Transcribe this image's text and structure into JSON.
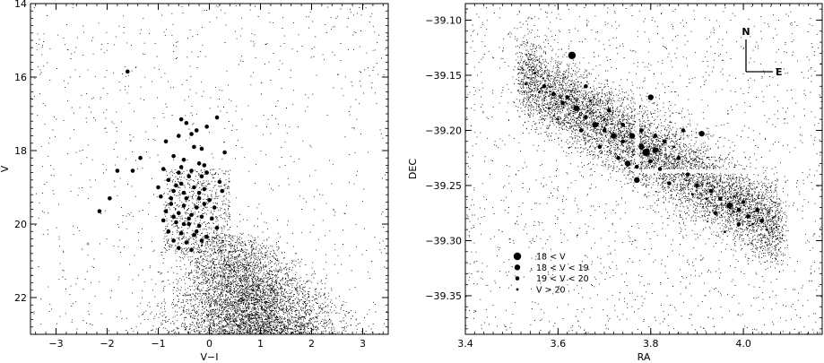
{
  "chart_data": [
    {
      "type": "scatter",
      "xlabel": "V−I",
      "ylabel": "V",
      "xlim": [
        -3.5,
        3.5
      ],
      "ylim": [
        23.0,
        14.0
      ],
      "y_inverted": true,
      "x_ticks": [
        -3,
        -2,
        -1,
        0,
        1,
        2,
        3
      ],
      "x_tick_labels": [
        "−3",
        "−2",
        "−1",
        "0",
        "1",
        "2",
        "3"
      ],
      "y_ticks": [
        14,
        16,
        18,
        20,
        22
      ],
      "y_tick_labels": [
        "14",
        "16",
        "18",
        "20",
        "22"
      ],
      "color": "#000000",
      "series": [
        {
          "role": "field stars (small dots)",
          "distribution": "dense cloud centered near V−I = 0.9, V = 22, extending from V−I ≈ −1 to 3 and V ≈ 20 to 23",
          "points": []
        },
        {
          "role": "bright blue stars (large dots)",
          "points": [
            [
              -1.6,
              15.85
            ],
            [
              -0.55,
              17.15
            ],
            [
              -0.45,
              17.25
            ],
            [
              -0.35,
              17.55
            ],
            [
              0.15,
              17.1
            ],
            [
              -0.05,
              17.35
            ],
            [
              -0.25,
              17.45
            ],
            [
              -0.6,
              17.6
            ],
            [
              -0.85,
              17.75
            ],
            [
              -0.3,
              17.9
            ],
            [
              -0.15,
              17.95
            ],
            [
              0.3,
              18.05
            ],
            [
              -0.7,
              18.15
            ],
            [
              -0.5,
              18.25
            ],
            [
              -0.2,
              18.35
            ],
            [
              -0.1,
              18.4
            ],
            [
              -1.35,
              18.2
            ],
            [
              -1.5,
              18.55
            ],
            [
              -1.8,
              18.55
            ],
            [
              -0.9,
              18.5
            ],
            [
              -0.6,
              18.6
            ],
            [
              -0.4,
              18.7
            ],
            [
              -0.15,
              18.7
            ],
            [
              0.2,
              18.85
            ],
            [
              -0.8,
              18.8
            ],
            [
              -0.55,
              18.9
            ],
            [
              -0.3,
              19.0
            ],
            [
              -0.1,
              19.05
            ],
            [
              -1.0,
              19.0
            ],
            [
              -0.7,
              19.1
            ],
            [
              0.25,
              19.1
            ],
            [
              -0.95,
              19.25
            ],
            [
              -0.45,
              19.3
            ],
            [
              -0.2,
              19.3
            ],
            [
              0.0,
              19.35
            ],
            [
              -1.95,
              19.3
            ],
            [
              -0.75,
              19.45
            ],
            [
              -0.5,
              19.5
            ],
            [
              -0.25,
              19.55
            ],
            [
              0.1,
              19.55
            ],
            [
              -2.15,
              19.65
            ],
            [
              -0.85,
              19.65
            ],
            [
              -0.6,
              19.7
            ],
            [
              -0.35,
              19.75
            ],
            [
              -0.15,
              19.8
            ],
            [
              0.05,
              19.85
            ],
            [
              -0.9,
              19.9
            ],
            [
              -0.65,
              19.95
            ],
            [
              -0.4,
              20.0
            ],
            [
              -0.2,
              20.05
            ],
            [
              0.15,
              20.1
            ],
            [
              -0.8,
              20.2
            ],
            [
              -0.55,
              20.25
            ],
            [
              -0.3,
              20.3
            ],
            [
              -0.05,
              20.35
            ],
            [
              -0.7,
              20.45
            ],
            [
              -0.45,
              20.5
            ],
            [
              -0.15,
              20.45
            ],
            [
              -0.6,
              20.65
            ],
            [
              -0.35,
              20.7
            ],
            [
              -0.55,
              18.45
            ],
            [
              -0.35,
              18.55
            ],
            [
              -0.05,
              18.6
            ],
            [
              -0.65,
              18.95
            ],
            [
              -0.2,
              19.15
            ],
            [
              -0.5,
              19.15
            ],
            [
              -0.75,
              19.3
            ],
            [
              -0.1,
              19.45
            ],
            [
              -0.4,
              19.85
            ],
            [
              -0.7,
              19.8
            ],
            [
              -0.25,
              20.2
            ],
            [
              -0.5,
              20.0
            ]
          ]
        }
      ]
    },
    {
      "type": "scatter",
      "xlabel": "RA",
      "ylabel": "DEC",
      "xlim": [
        3.4,
        4.17
      ],
      "ylim": [
        -39.385,
        -39.085
      ],
      "x_ticks": [
        3.4,
        3.6,
        3.8,
        4.0
      ],
      "x_tick_labels": [
        "3.4",
        "3.6",
        "3.8",
        "4.0"
      ],
      "y_ticks": [
        -39.1,
        -39.15,
        -39.2,
        -39.25,
        -39.3,
        -39.35
      ],
      "y_tick_labels": [
        "−39.10",
        "−39.15",
        "−39.20",
        "−39.25",
        "−39.30",
        "−39.35"
      ],
      "compass": {
        "north": "N",
        "east": "E"
      },
      "legend": [
        {
          "label": "18 < V",
          "size": 4.2
        },
        {
          "label": "18 < V < 19",
          "size": 3.2
        },
        {
          "label": "19 < V < 20",
          "size": 2.3
        },
        {
          "label": "V > 20",
          "size": 1.4
        }
      ],
      "legend_position": "bottom-left",
      "series": [
        {
          "role": "all stars (small dots)",
          "distribution": "elongated band from (RA 3.52, DEC −39.15) to (RA 4.07, DEC −39.30), plus sparse uniform background",
          "points": []
        },
        {
          "role": "bright blue stars (sized by V)",
          "points": [
            [
              3.63,
              -39.132,
              4.2
            ],
            [
              3.8,
              -39.17,
              3.2
            ],
            [
              3.91,
              -39.203,
              3.2
            ],
            [
              3.77,
              -39.245,
              3.2
            ],
            [
              3.57,
              -39.16,
              2.3
            ],
            [
              3.59,
              -39.167,
              2.3
            ],
            [
              3.61,
              -39.175,
              2.3
            ],
            [
              3.64,
              -39.18,
              3.2
            ],
            [
              3.66,
              -39.188,
              2.3
            ],
            [
              3.68,
              -39.195,
              3.2
            ],
            [
              3.7,
              -39.2,
              2.3
            ],
            [
              3.72,
              -39.205,
              3.2
            ],
            [
              3.74,
              -39.21,
              2.3
            ],
            [
              3.76,
              -39.205,
              3.2
            ],
            [
              3.78,
              -39.215,
              3.2
            ],
            [
              3.79,
              -39.22,
              4.2
            ],
            [
              3.81,
              -39.218,
              3.2
            ],
            [
              3.8,
              -39.228,
              2.3
            ],
            [
              3.82,
              -39.235,
              2.3
            ],
            [
              3.75,
              -39.23,
              3.2
            ],
            [
              3.86,
              -39.225,
              2.3
            ],
            [
              3.88,
              -39.24,
              2.3
            ],
            [
              3.9,
              -39.25,
              2.3
            ],
            [
              3.93,
              -39.255,
              2.3
            ],
            [
              3.95,
              -39.262,
              2.3
            ],
            [
              3.97,
              -39.268,
              3.2
            ],
            [
              3.99,
              -39.272,
              2.3
            ],
            [
              4.01,
              -39.278,
              2.3
            ],
            [
              4.03,
              -39.272,
              2.3
            ],
            [
              4.04,
              -39.282,
              2.3
            ],
            [
              3.94,
              -39.275,
              2.3
            ],
            [
              3.96,
              -39.292,
              1.4
            ],
            [
              3.66,
              -39.16,
              2.3
            ],
            [
              3.65,
              -39.2,
              2.3
            ],
            [
              3.69,
              -39.215,
              2.3
            ],
            [
              3.73,
              -39.225,
              2.3
            ],
            [
              3.84,
              -39.248,
              2.3
            ],
            [
              3.87,
              -39.2,
              2.3
            ],
            [
              3.55,
              -39.148,
              1.4
            ],
            [
              3.6,
              -39.19,
              1.4
            ],
            [
              3.71,
              -39.182,
              2.3
            ],
            [
              3.74,
              -39.195,
              2.3
            ],
            [
              3.78,
              -39.2,
              2.3
            ],
            [
              3.83,
              -39.21,
              2.3
            ],
            [
              3.85,
              -39.215,
              1.4
            ],
            [
              3.92,
              -39.262,
              1.4
            ],
            [
              3.99,
              -39.285,
              2.3
            ],
            [
              4.05,
              -39.29,
              1.4
            ],
            [
              3.58,
              -39.18,
              1.4
            ],
            [
              3.62,
              -39.17,
              2.3
            ],
            [
              3.67,
              -39.173,
              1.4
            ],
            [
              3.7,
              -39.19,
              1.4
            ],
            [
              3.77,
              -39.233,
              2.3
            ],
            [
              3.81,
              -39.205,
              2.3
            ],
            [
              3.89,
              -39.258,
              1.4
            ],
            [
              3.98,
              -39.26,
              1.4
            ],
            [
              4.0,
              -39.265,
              2.3
            ],
            [
              4.02,
              -39.285,
              1.4
            ],
            [
              3.56,
              -39.165,
              1.4
            ],
            [
              3.53,
              -39.158,
              1.4
            ]
          ]
        }
      ]
    }
  ]
}
